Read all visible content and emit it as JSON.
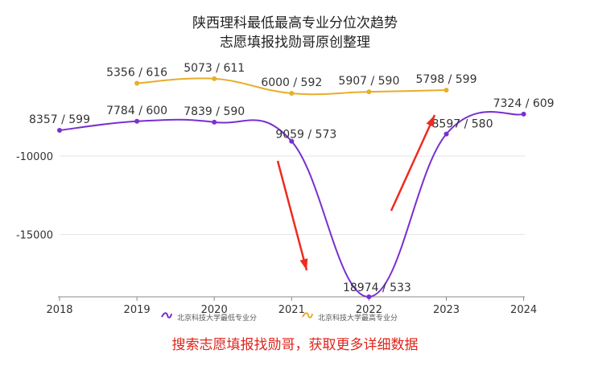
{
  "header": {
    "title": "陕西理科最低最高专业分位次趋势",
    "subtitle": "志愿填报找勋哥原创整理"
  },
  "footer": {
    "text": "搜索志愿填报找勋哥，获取更多详细数据"
  },
  "colors": {
    "min_series": "#7a2fd0",
    "max_series": "#e8ad2a",
    "arrow": "#ee2b1f",
    "grid": "#e6e6e6",
    "text": "#333333"
  },
  "chart_data": {
    "type": "line",
    "x": [
      "2018",
      "2019",
      "2020",
      "2021",
      "2022",
      "2023",
      "2024"
    ],
    "yticks": [
      "-10000",
      "-15000"
    ],
    "series": [
      {
        "name": "北京科技大学最低专业分",
        "rank": [
          8357,
          7784,
          7839,
          9059,
          18974,
          8597,
          7324
        ],
        "score": [
          599,
          600,
          590,
          573,
          533,
          580,
          609
        ],
        "labels": [
          "8357 / 599",
          "7784 / 600",
          "7839 / 590",
          "9059 / 573",
          "18974 / 533",
          "8597 / 580",
          "7324 / 609"
        ]
      },
      {
        "name": "北京科技大学最高专业分",
        "rank": [
          null,
          5356,
          5073,
          6000,
          5907,
          5798,
          null
        ],
        "score": [
          null,
          616,
          611,
          592,
          590,
          599,
          null
        ],
        "labels": [
          null,
          "5356 / 616",
          "5073 / 611",
          "6000 / 592",
          "5907 / 590",
          "5798 / 599",
          null
        ]
      }
    ],
    "annotations": [
      "arrow-down-2021-2022",
      "arrow-up-2022-2023"
    ]
  }
}
